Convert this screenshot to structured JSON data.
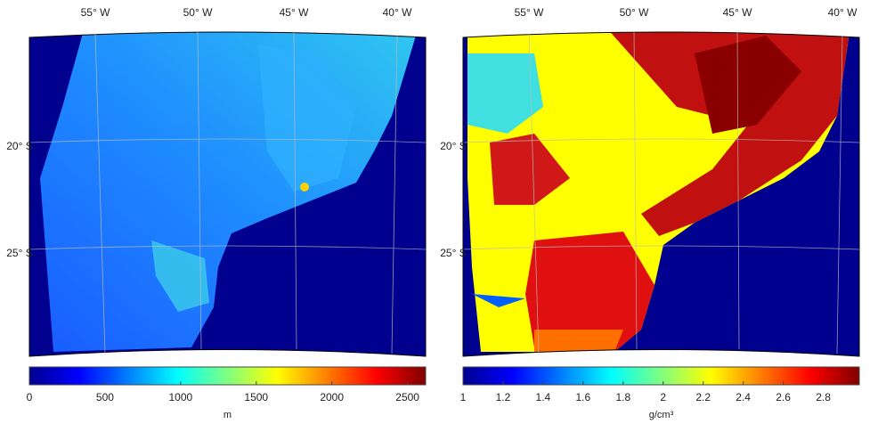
{
  "maps": [
    {
      "lon_labels": [
        "55° W",
        "50° W",
        "45° W",
        "40° W"
      ],
      "lat_labels": [
        "20° S",
        "25° S"
      ],
      "colorbar": {
        "label": "m",
        "lim": [
          0,
          2620
        ],
        "ticks": [
          0,
          500,
          1000,
          1500,
          2000,
          2500
        ]
      }
    },
    {
      "lon_labels": [
        "55° W",
        "50° W",
        "45° W",
        "40° W"
      ],
      "lat_labels": [
        "20° S",
        "25° S"
      ],
      "colorbar": {
        "label": "g/cm³",
        "lim": [
          1,
          2.98
        ],
        "ticks": [
          1,
          1.2,
          1.4,
          1.6,
          1.8,
          2,
          2.2,
          2.4,
          2.6,
          2.8
        ]
      }
    }
  ]
}
